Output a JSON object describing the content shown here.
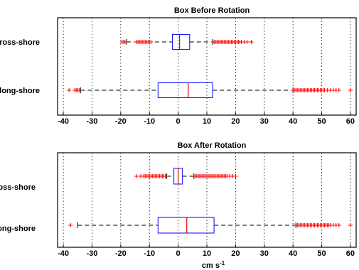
{
  "chart_data": [
    {
      "type": "boxplot",
      "title": "Box Before  Rotation",
      "orientation": "horizontal",
      "xlim": [
        -42,
        62
      ],
      "xticks": [
        -40,
        -30,
        -20,
        -10,
        0,
        10,
        20,
        30,
        40,
        50,
        60
      ],
      "grid": "x-dotted",
      "categories": [
        "ross-shore",
        "long-shore"
      ],
      "boxes": [
        {
          "category": "ross-shore",
          "whisker_low": -18,
          "q1": -2,
          "median": 0.5,
          "q3": 4,
          "whisker_high": 12,
          "outliers": [
            -19.5,
            -19,
            -18.5,
            -14.5,
            -14,
            -13.5,
            -13,
            -12.5,
            -12,
            -11.5,
            -11,
            -10.5,
            -10,
            -9.5,
            12.5,
            13,
            13.5,
            14,
            14.5,
            15,
            15.5,
            16,
            16.5,
            17,
            17.5,
            18,
            18.5,
            19,
            19.5,
            20,
            20.5,
            21,
            21.5,
            22,
            23,
            24,
            25.5
          ]
        },
        {
          "category": "long-shore",
          "whisker_low": -34,
          "q1": -7,
          "median": 3.5,
          "q3": 12,
          "whisker_high": 40,
          "outliers": [
            -38,
            -36,
            -35.5,
            -35,
            -34.5,
            40,
            40.5,
            41,
            41.5,
            42,
            42.5,
            43,
            43.5,
            44,
            44.5,
            45,
            45.5,
            46,
            46.5,
            47,
            47.5,
            48,
            48.5,
            49,
            49.5,
            50,
            50.5,
            51,
            52,
            53,
            54,
            55,
            56,
            60
          ]
        }
      ]
    },
    {
      "type": "boxplot",
      "title": "Box After  Rotation",
      "orientation": "horizontal",
      "xlim": [
        -42,
        62
      ],
      "xticks": [
        -40,
        -30,
        -20,
        -10,
        0,
        10,
        20,
        30,
        40,
        50,
        60
      ],
      "xtick_labels": [
        "-40",
        "-30",
        "-20",
        "-10",
        "0",
        "10",
        "20",
        "30",
        "40",
        "50",
        "60"
      ],
      "grid": "x-dotted",
      "xlabel": "cm s",
      "xlabel_superscript": "-1",
      "categories": [
        "ross-shore",
        "long-shore"
      ],
      "boxes": [
        {
          "category": "ross-shore",
          "whisker_low": -4,
          "q1": -1.5,
          "median": 0,
          "q3": 1.5,
          "whisker_high": 5.5,
          "outliers": [
            -14.5,
            -13,
            -12,
            -11.5,
            -11,
            -10.5,
            -10,
            -9.5,
            -9,
            -8.5,
            -8,
            -7.5,
            -7,
            -6.5,
            -6,
            -5.5,
            -5,
            -4.5,
            6,
            6.5,
            7,
            7.5,
            8,
            8.5,
            9,
            9.5,
            10,
            10.5,
            11,
            11.5,
            12,
            12.5,
            13,
            13.5,
            14,
            14.5,
            15,
            15.5,
            16,
            16.5,
            17,
            18,
            19,
            20
          ]
        },
        {
          "category": "long-shore",
          "whisker_low": -35,
          "q1": -7,
          "median": 3,
          "q3": 12.5,
          "whisker_high": 41,
          "outliers": [
            -37.5,
            41.5,
            42,
            42.5,
            43,
            43.5,
            44,
            44.5,
            45,
            45.5,
            46,
            46.5,
            47,
            47.5,
            48,
            48.5,
            49,
            49.5,
            50,
            50.5,
            51,
            51.5,
            52,
            52.5,
            53,
            54,
            55,
            56,
            60
          ]
        }
      ]
    }
  ]
}
